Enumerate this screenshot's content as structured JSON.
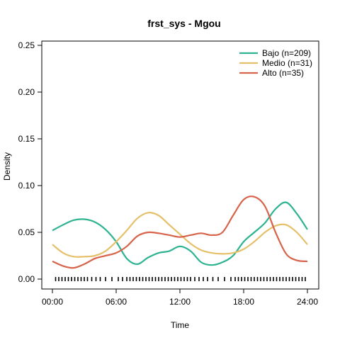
{
  "chart_data": {
    "type": "line",
    "title": "frst_sys - Mgou",
    "xlabel": "Time",
    "ylabel": "Density",
    "xlim": [
      0,
      24
    ],
    "ylim": [
      0,
      0.25
    ],
    "x_ticks": [
      0,
      6,
      12,
      18,
      24
    ],
    "x_tick_labels": [
      "00:00",
      "06:00",
      "12:00",
      "18:00",
      "24:00"
    ],
    "y_ticks": [
      0,
      0.05,
      0.1,
      0.15,
      0.2,
      0.25
    ],
    "y_tick_labels": [
      "0.00",
      "0.05",
      "0.10",
      "0.15",
      "0.20",
      "0.25"
    ],
    "grid": false,
    "legend_position": "top-right",
    "series": [
      {
        "name": "Bajo (n=209)",
        "color": "#2db390",
        "points": [
          [
            0,
            0.052
          ],
          [
            1,
            0.058
          ],
          [
            2,
            0.063
          ],
          [
            3,
            0.064
          ],
          [
            4,
            0.061
          ],
          [
            5,
            0.053
          ],
          [
            6,
            0.04
          ],
          [
            7,
            0.022
          ],
          [
            8,
            0.016
          ],
          [
            9,
            0.023
          ],
          [
            10,
            0.028
          ],
          [
            11,
            0.03
          ],
          [
            12,
            0.035
          ],
          [
            13,
            0.03
          ],
          [
            14,
            0.018
          ],
          [
            15,
            0.015
          ],
          [
            16,
            0.018
          ],
          [
            17,
            0.025
          ],
          [
            18,
            0.04
          ],
          [
            19,
            0.05
          ],
          [
            20,
            0.06
          ],
          [
            21,
            0.075
          ],
          [
            22,
            0.082
          ],
          [
            23,
            0.07
          ],
          [
            24,
            0.053
          ]
        ]
      },
      {
        "name": "Medio (n=31)",
        "color": "#e5c06a",
        "points": [
          [
            0,
            0.037
          ],
          [
            1,
            0.028
          ],
          [
            2,
            0.024
          ],
          [
            3,
            0.024
          ],
          [
            4,
            0.025
          ],
          [
            5,
            0.03
          ],
          [
            6,
            0.04
          ],
          [
            7,
            0.052
          ],
          [
            8,
            0.065
          ],
          [
            9,
            0.071
          ],
          [
            10,
            0.068
          ],
          [
            11,
            0.058
          ],
          [
            12,
            0.048
          ],
          [
            13,
            0.038
          ],
          [
            14,
            0.031
          ],
          [
            15,
            0.028
          ],
          [
            16,
            0.027
          ],
          [
            17,
            0.028
          ],
          [
            18,
            0.032
          ],
          [
            19,
            0.04
          ],
          [
            20,
            0.05
          ],
          [
            21,
            0.057
          ],
          [
            22,
            0.058
          ],
          [
            23,
            0.05
          ],
          [
            24,
            0.037
          ]
        ]
      },
      {
        "name": "Alto (n=35)",
        "color": "#d6634a",
        "points": [
          [
            0,
            0.019
          ],
          [
            1,
            0.014
          ],
          [
            2,
            0.012
          ],
          [
            3,
            0.016
          ],
          [
            4,
            0.022
          ],
          [
            5,
            0.025
          ],
          [
            6,
            0.028
          ],
          [
            7,
            0.035
          ],
          [
            8,
            0.046
          ],
          [
            9,
            0.05
          ],
          [
            10,
            0.049
          ],
          [
            11,
            0.047
          ],
          [
            12,
            0.045
          ],
          [
            13,
            0.047
          ],
          [
            14,
            0.049
          ],
          [
            15,
            0.047
          ],
          [
            16,
            0.05
          ],
          [
            17,
            0.068
          ],
          [
            18,
            0.085
          ],
          [
            19,
            0.088
          ],
          [
            20,
            0.078
          ],
          [
            21,
            0.05
          ],
          [
            22,
            0.027
          ],
          [
            23,
            0.02
          ],
          [
            24,
            0.019
          ]
        ]
      }
    ],
    "rug": [
      0.3,
      0.6,
      0.9,
      1.2,
      1.5,
      1.8,
      2.1,
      2.4,
      2.7,
      3.0,
      3.3,
      3.7,
      4.1,
      4.5,
      5.0,
      5.6,
      6.2,
      6.6,
      7.0,
      7.3,
      7.6,
      7.9,
      8.2,
      8.5,
      8.8,
      9.1,
      9.4,
      9.7,
      10.0,
      10.3,
      10.6,
      10.9,
      11.2,
      11.5,
      11.8,
      12.1,
      12.4,
      12.7,
      13.0,
      13.4,
      13.8,
      14.2,
      14.6,
      15.1,
      15.6,
      16.2,
      16.8,
      17.2,
      17.5,
      17.8,
      18.1,
      18.4,
      18.7,
      19.0,
      19.3,
      19.6,
      19.9,
      20.2,
      20.5,
      20.8,
      21.1,
      21.4,
      21.7,
      22.0,
      22.3,
      22.6,
      22.9,
      23.2,
      23.5,
      23.8
    ]
  }
}
